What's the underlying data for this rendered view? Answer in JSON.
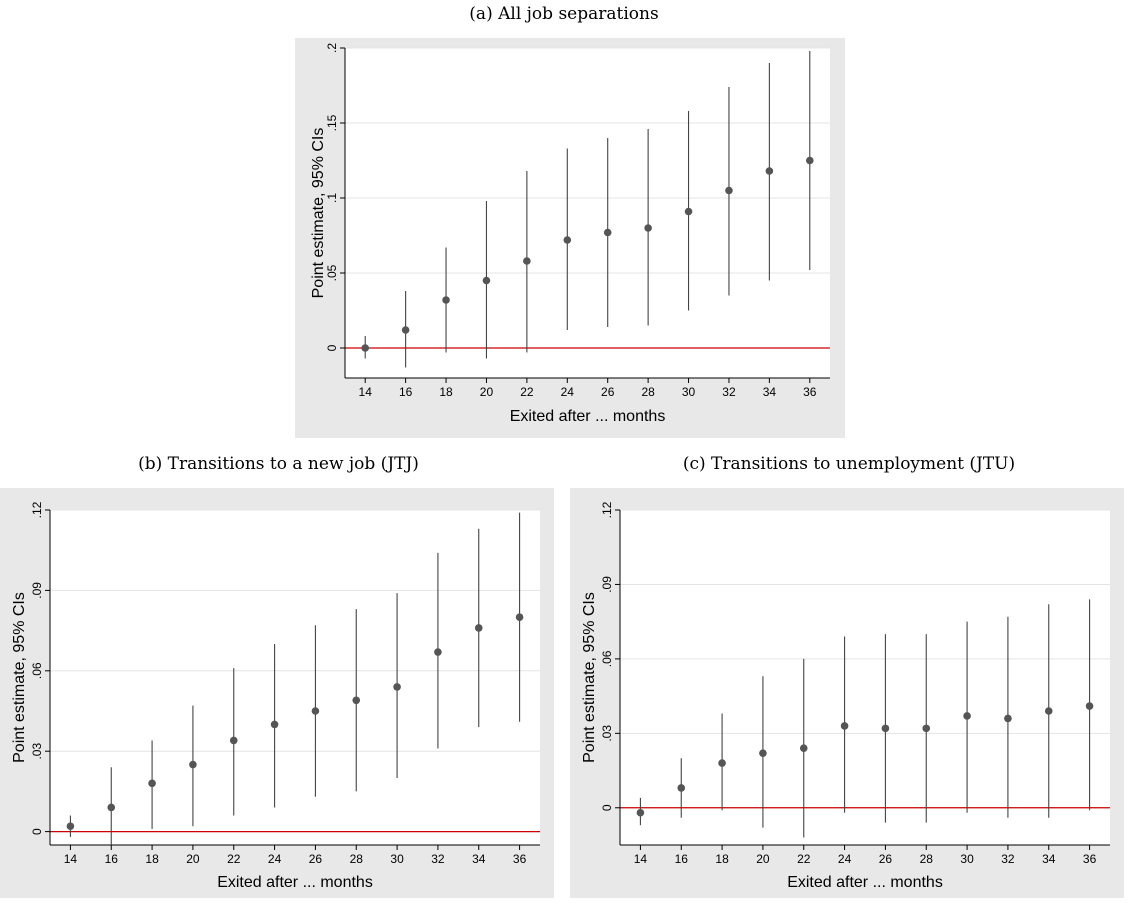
{
  "captions": {
    "a": "(a) All job separations",
    "b": "(b) Transitions to a new job (JTJ)",
    "c": "(c) Transitions to unemployment (JTU)"
  },
  "colors": {
    "panel_bg": "#e8e8e8",
    "plot_bg": "#ffffff",
    "grid": "#e4e4e4",
    "axis": "#000000",
    "zero_line": "#cc0000",
    "marker": "#555555",
    "ci_line": "#444444"
  },
  "chart_data": [
    {
      "id": "a",
      "type": "scatter",
      "subtype": "point-estimate-with-confidence-intervals",
      "title": "(a) All job separations",
      "xlabel": "Exited after ... months",
      "ylabel": "Point estimate, 95% CIs",
      "x": [
        14,
        16,
        18,
        20,
        22,
        24,
        26,
        28,
        30,
        32,
        34,
        36
      ],
      "xticks": [
        "14",
        "16",
        "18",
        "20",
        "22",
        "24",
        "26",
        "28",
        "30",
        "32",
        "34",
        "36"
      ],
      "xlim": [
        13,
        37
      ],
      "ylim": [
        -0.02,
        0.2
      ],
      "yticks": [
        0,
        0.05,
        0.1,
        0.15,
        0.2
      ],
      "ytick_labels": [
        "0",
        ".05",
        ".1",
        ".15",
        ".2"
      ],
      "estimate": [
        0.0,
        0.012,
        0.032,
        0.045,
        0.058,
        0.072,
        0.077,
        0.08,
        0.091,
        0.105,
        0.118,
        0.125
      ],
      "ci_low": [
        -0.007,
        -0.013,
        -0.003,
        -0.007,
        -0.003,
        0.012,
        0.014,
        0.015,
        0.025,
        0.035,
        0.045,
        0.052
      ],
      "ci_high": [
        0.008,
        0.038,
        0.067,
        0.098,
        0.118,
        0.133,
        0.14,
        0.146,
        0.158,
        0.174,
        0.19,
        0.198
      ],
      "reference_line_y": 0,
      "grid": true
    },
    {
      "id": "b",
      "type": "scatter",
      "subtype": "point-estimate-with-confidence-intervals",
      "title": "(b) Transitions to a new job (JTJ)",
      "xlabel": "Exited after ... months",
      "ylabel": "Point estimate, 95% CIs",
      "x": [
        14,
        16,
        18,
        20,
        22,
        24,
        26,
        28,
        30,
        32,
        34,
        36
      ],
      "xticks": [
        "14",
        "16",
        "18",
        "20",
        "22",
        "24",
        "26",
        "28",
        "30",
        "32",
        "34",
        "36"
      ],
      "xlim": [
        13,
        37
      ],
      "ylim": [
        -0.005,
        0.12
      ],
      "yticks": [
        0,
        0.03,
        0.06,
        0.09,
        0.12
      ],
      "ytick_labels": [
        "0",
        ".03",
        ".06",
        ".09",
        ".12"
      ],
      "estimate": [
        0.002,
        0.009,
        0.018,
        0.025,
        0.034,
        0.04,
        0.045,
        0.049,
        0.054,
        0.067,
        0.076,
        0.08
      ],
      "ci_low": [
        -0.002,
        -0.005,
        0.001,
        0.002,
        0.006,
        0.009,
        0.013,
        0.015,
        0.02,
        0.031,
        0.039,
        0.041
      ],
      "ci_high": [
        0.006,
        0.024,
        0.034,
        0.047,
        0.061,
        0.07,
        0.077,
        0.083,
        0.089,
        0.104,
        0.113,
        0.119
      ],
      "reference_line_y": 0,
      "grid": true
    },
    {
      "id": "c",
      "type": "scatter",
      "subtype": "point-estimate-with-confidence-intervals",
      "title": "(c) Transitions to unemployment (JTU)",
      "xlabel": "Exited after ... months",
      "ylabel": "Point estimate, 95% CIs",
      "x": [
        14,
        16,
        18,
        20,
        22,
        24,
        26,
        28,
        30,
        32,
        34,
        36
      ],
      "xticks": [
        "14",
        "16",
        "18",
        "20",
        "22",
        "24",
        "26",
        "28",
        "30",
        "32",
        "34",
        "36"
      ],
      "xlim": [
        13,
        37
      ],
      "ylim": [
        -0.015,
        0.12
      ],
      "yticks": [
        0,
        0.03,
        0.06,
        0.09,
        0.12
      ],
      "ytick_labels": [
        "0",
        ".03",
        ".06",
        ".09",
        ".12"
      ],
      "estimate": [
        -0.002,
        0.008,
        0.018,
        0.022,
        0.024,
        0.033,
        0.032,
        0.032,
        0.037,
        0.036,
        0.039,
        0.041
      ],
      "ci_low": [
        -0.007,
        -0.004,
        -0.001,
        -0.008,
        -0.012,
        -0.002,
        -0.006,
        -0.006,
        -0.002,
        -0.004,
        -0.004,
        -0.001
      ],
      "ci_high": [
        0.004,
        0.02,
        0.038,
        0.053,
        0.06,
        0.069,
        0.07,
        0.07,
        0.075,
        0.077,
        0.082,
        0.084
      ],
      "reference_line_y": 0,
      "grid": true
    }
  ]
}
